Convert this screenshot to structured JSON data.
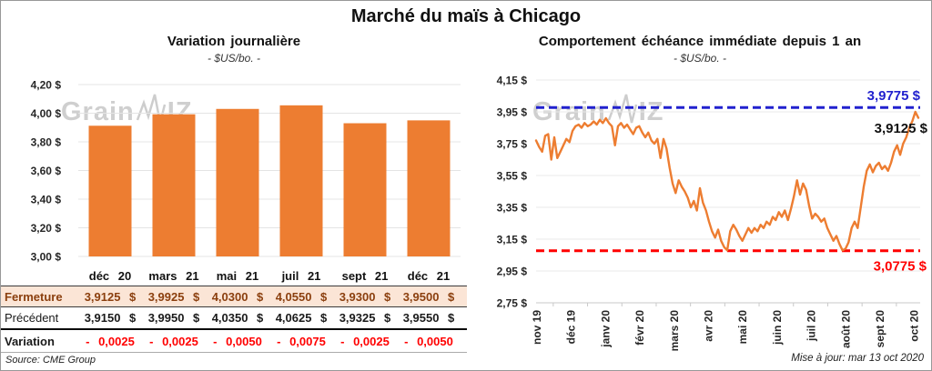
{
  "header": {
    "title": "Marché du maïs à Chicago"
  },
  "watermark": {
    "prefix": "Grain",
    "suffix": "IZ"
  },
  "chart_data": [
    {
      "type": "bar",
      "title": "Variation journalière",
      "subtitle": "- $US/bo. -",
      "categories": [
        "déc 20",
        "mars 21",
        "mai 21",
        "juil 21",
        "sept 21",
        "déc 21"
      ],
      "values": [
        3.9125,
        3.9925,
        4.03,
        4.055,
        3.93,
        3.95
      ],
      "ylim": [
        3.0,
        4.2
      ],
      "ytick_step": 0.2,
      "ytick_labels": [
        "4,20 $",
        "4,00 $",
        "3,80 $",
        "3,60 $",
        "3,40 $",
        "3,20 $",
        "3,00 $"
      ],
      "bar_color": "#ED7D31",
      "grid": true,
      "legend": "none"
    },
    {
      "type": "line",
      "title": "Comportement échéance immédiate depuis 1 an",
      "subtitle": "- $US/bo. -",
      "x_labels": [
        "nov 19",
        "déc 19",
        "janv 20",
        "févr 20",
        "mars 20",
        "avr 20",
        "mai 20",
        "juin 20",
        "juil 20",
        "août 20",
        "sept 20",
        "oct 20"
      ],
      "ylim": [
        2.75,
        4.15
      ],
      "ytick_step": 0.2,
      "ytick_labels": [
        "4,15 $",
        "3,95 $",
        "3,75 $",
        "3,55 $",
        "3,35 $",
        "3,15 $",
        "2,95 $",
        "2,75 $"
      ],
      "line_color": "#ED7D31",
      "grid": true,
      "legend": "none",
      "resistance": {
        "value": 3.9775,
        "label": "3,9775 $",
        "color": "#2121CE"
      },
      "support": {
        "value": 3.0775,
        "label": "3,0775 $",
        "color": "#FF0000"
      },
      "last": {
        "value": 3.9125,
        "label": "3,9125 $",
        "color": "#111111"
      },
      "values": [
        3.77,
        3.73,
        3.7,
        3.8,
        3.81,
        3.65,
        3.79,
        3.66,
        3.7,
        3.74,
        3.78,
        3.76,
        3.83,
        3.86,
        3.87,
        3.85,
        3.88,
        3.86,
        3.87,
        3.89,
        3.87,
        3.9,
        3.88,
        3.91,
        3.88,
        3.86,
        3.74,
        3.86,
        3.88,
        3.85,
        3.87,
        3.84,
        3.81,
        3.85,
        3.86,
        3.82,
        3.79,
        3.82,
        3.77,
        3.75,
        3.78,
        3.66,
        3.78,
        3.72,
        3.6,
        3.5,
        3.44,
        3.52,
        3.48,
        3.45,
        3.41,
        3.35,
        3.39,
        3.33,
        3.47,
        3.38,
        3.33,
        3.26,
        3.2,
        3.16,
        3.21,
        3.14,
        3.1,
        3.08,
        3.2,
        3.24,
        3.21,
        3.17,
        3.14,
        3.18,
        3.22,
        3.19,
        3.22,
        3.2,
        3.24,
        3.22,
        3.26,
        3.24,
        3.29,
        3.27,
        3.32,
        3.29,
        3.33,
        3.27,
        3.34,
        3.42,
        3.52,
        3.43,
        3.5,
        3.46,
        3.36,
        3.28,
        3.31,
        3.29,
        3.26,
        3.28,
        3.22,
        3.18,
        3.14,
        3.17,
        3.12,
        3.08,
        3.09,
        3.13,
        3.22,
        3.26,
        3.22,
        3.35,
        3.48,
        3.58,
        3.62,
        3.57,
        3.61,
        3.63,
        3.59,
        3.61,
        3.58,
        3.63,
        3.7,
        3.74,
        3.68,
        3.75,
        3.79,
        3.85,
        3.89,
        3.95,
        3.9125
      ]
    }
  ],
  "table": {
    "columns": [
      "déc 20",
      "mars 21",
      "mai 21",
      "juil 21",
      "sept 21",
      "déc 21"
    ],
    "rows": [
      {
        "label": "Fermeture",
        "style": "rclose",
        "values": [
          "3,9125 $",
          "3,9925 $",
          "4,0300 $",
          "4,0550 $",
          "3,9300 $",
          "3,9500 $"
        ]
      },
      {
        "label": "Précédent",
        "style": "rprev",
        "values": [
          "3,9150 $",
          "3,9950 $",
          "4,0350 $",
          "4,0625 $",
          "3,9325 $",
          "3,9550 $"
        ]
      },
      {
        "label": "Variation",
        "style": "rvar",
        "values": [
          "- 0,0025",
          "- 0,0025",
          "- 0,0050",
          "- 0,0075",
          "- 0,0025",
          "- 0,0050"
        ]
      }
    ]
  },
  "footer": {
    "source": "Source: CME Group",
    "updated": "Mise à jour: mar 13 oct 2020"
  }
}
